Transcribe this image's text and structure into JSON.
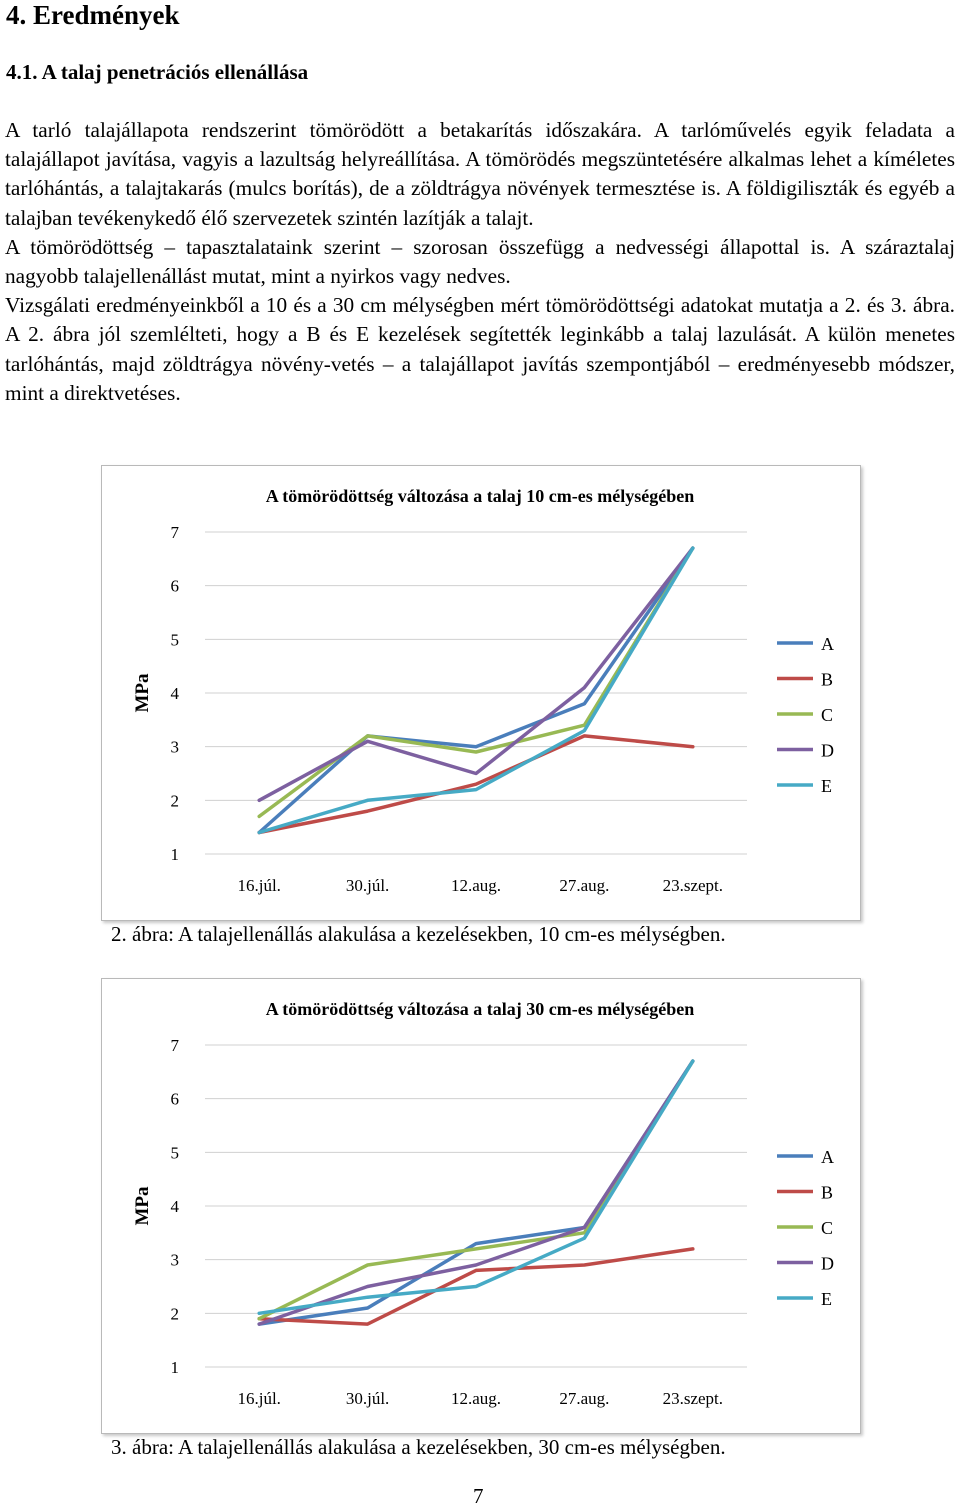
{
  "heading": "4.   Eredmények",
  "subheading": "4.1. A talaj penetrációs ellenállása",
  "paragraphs": [
    "A tarló talajállapota rendszerint tömörödött a betakarítás időszakára. A tarlóművelés egyik feladata a talajállapot javítása, vagyis a lazultság helyreállítása. A tömörödés megszüntetésére alkalmas lehet a kíméletes tarlóhántás, a talajtakarás (mulcs borítás), de a zöldtrágya növények termesztése is. A földigiliszták és egyéb a talajban tevékenykedő élő szervezetek szintén lazítják a talajt.",
    "A tömörödöttség – tapasztalataink szerint – szorosan összefügg a nedvességi állapottal is. A száraztalaj nagyobb talajellenállást mutat, mint a nyirkos vagy nedves.",
    "Vizsgálati eredményeinkből a 10 és a 30 cm mélységben mért tömörödöttségi adatokat mutatja a 2. és 3. ábra. A 2. ábra jól szemlélteti, hogy a B és E kezelések segítették leginkább a talaj lazulását. A külön menetes tarlóhántás, majd zöldtrágya növény-vetés – a talajállapot javítás szempontjából – eredményesebb módszer, mint a direktvetéses."
  ],
  "captions": [
    "2. ábra: A talajellenállás alakulása a kezelésekben, 10 cm-es mélységben.",
    "3. ábra: A talajellenállás alakulása a kezelésekben, 30 cm-es mélységben."
  ],
  "page_number": "7",
  "colors": {
    "A": "#4a7ebb",
    "B": "#be4b48",
    "C": "#98b954",
    "D": "#7d60a0",
    "E": "#46aac5"
  },
  "chart_data": [
    {
      "type": "line",
      "title": "A tömörödöttség változása a talaj 10 cm-es mélységében",
      "xlabel": "",
      "ylabel": "MPa",
      "ylim": [
        1,
        7
      ],
      "yticks": [
        "1",
        "2",
        "3",
        "4",
        "5",
        "6",
        "7"
      ],
      "grid": true,
      "legend": "right",
      "categories": [
        "16.júl.",
        "30.júl.",
        "12.aug.",
        "27.aug.",
        "23.szept."
      ],
      "series": [
        {
          "name": "A",
          "values": [
            1.4,
            3.2,
            3.0,
            3.8,
            6.7
          ]
        },
        {
          "name": "B",
          "values": [
            1.4,
            1.8,
            2.3,
            3.2,
            3.0
          ]
        },
        {
          "name": "C",
          "values": [
            1.7,
            3.2,
            2.9,
            3.4,
            6.7
          ]
        },
        {
          "name": "D",
          "values": [
            2.0,
            3.1,
            2.5,
            4.1,
            6.7
          ]
        },
        {
          "name": "E",
          "values": [
            1.4,
            2.0,
            2.2,
            3.3,
            6.7
          ]
        }
      ]
    },
    {
      "type": "line",
      "title": "A tömörödöttség változása a talaj 30 cm-es mélységében",
      "xlabel": "",
      "ylabel": "MPa",
      "ylim": [
        1,
        7
      ],
      "yticks": [
        "1",
        "2",
        "3",
        "4",
        "5",
        "6",
        "7"
      ],
      "grid": true,
      "legend": "right",
      "categories": [
        "16.júl.",
        "30.júl.",
        "12.aug.",
        "27.aug.",
        "23.szept."
      ],
      "series": [
        {
          "name": "A",
          "values": [
            1.8,
            2.1,
            3.3,
            3.6,
            6.7
          ]
        },
        {
          "name": "B",
          "values": [
            1.9,
            1.8,
            2.8,
            2.9,
            3.2
          ]
        },
        {
          "name": "C",
          "values": [
            1.9,
            2.9,
            3.2,
            3.5,
            6.7
          ]
        },
        {
          "name": "D",
          "values": [
            1.8,
            2.5,
            2.9,
            3.6,
            6.7
          ]
        },
        {
          "name": "E",
          "values": [
            2.0,
            2.3,
            2.5,
            3.4,
            6.7
          ]
        }
      ]
    }
  ]
}
